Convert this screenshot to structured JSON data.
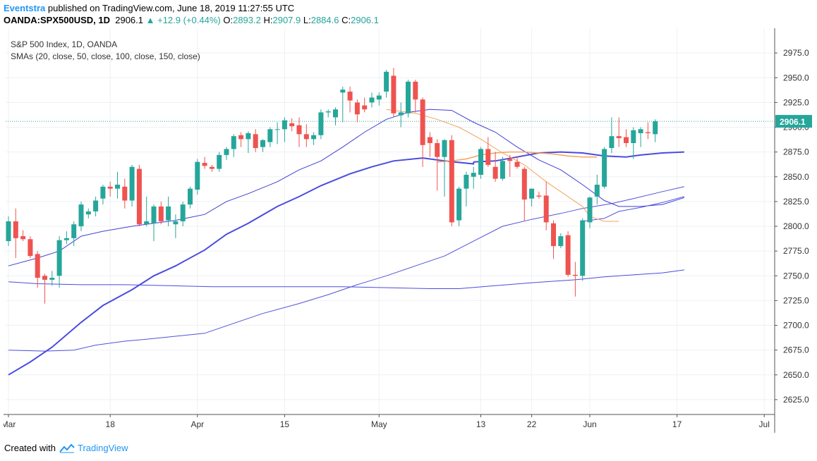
{
  "header": {
    "author": "Eventstra",
    "published_text": " published on TradingView.com, June 18, 2019 11:27:55 UTC",
    "symbol_line": "OANDA:SPX500USD, 1D",
    "price": "2906.1",
    "change": "▲ +12.9 (+0.44%)",
    "open_label": "O:",
    "open_value": "2893.2",
    "high_label": "H:",
    "high_value": "2907.9",
    "low_label": "L:",
    "low_value": "2884.6",
    "close_label": "C:",
    "close_value": "2906.1"
  },
  "legend": {
    "title": "S&P 500 Index, 1D, OANDA",
    "indicators": "SMAs (20, close, 50, close, 100, close, 150, close)"
  },
  "footer": {
    "created_with": "Created with",
    "brand": "TradingView"
  },
  "colors": {
    "up": "#26a69a",
    "down": "#ef5350",
    "sma20": "#3f3fd6",
    "sma50": "#f5a35c",
    "sma100": "#4b4be0",
    "sma150": "#5252d8",
    "last_price_bg": "#26a69a",
    "grid": "#eef0f3",
    "author": "#2196f3"
  },
  "chart_data": {
    "type": "candlestick",
    "ylim": [
      2610,
      3000
    ],
    "y_ticks": [
      "2625.0",
      "2650.0",
      "2675.0",
      "2700.0",
      "2725.0",
      "2750.0",
      "2775.0",
      "2800.0",
      "2825.0",
      "2850.0",
      "2875.0",
      "2900.0",
      "2925.0",
      "2950.0",
      "2975.0"
    ],
    "x_tick_labels": [
      "Mar",
      "18",
      "Apr",
      "15",
      "May",
      "13",
      "22",
      "Jun",
      "17",
      "Jul"
    ],
    "last_price_label": "2906.1",
    "candles": [
      {
        "o": 2785,
        "h": 2810,
        "l": 2780,
        "c": 2805
      },
      {
        "o": 2805,
        "h": 2818,
        "l": 2768,
        "c": 2788
      },
      {
        "o": 2790,
        "h": 2796,
        "l": 2785,
        "c": 2787
      },
      {
        "o": 2787,
        "h": 2790,
        "l": 2768,
        "c": 2770
      },
      {
        "o": 2772,
        "h": 2775,
        "l": 2738,
        "c": 2748
      },
      {
        "o": 2750,
        "h": 2752,
        "l": 2722,
        "c": 2746
      },
      {
        "o": 2746,
        "h": 2755,
        "l": 2740,
        "c": 2748
      },
      {
        "o": 2750,
        "h": 2790,
        "l": 2738,
        "c": 2786
      },
      {
        "o": 2786,
        "h": 2795,
        "l": 2782,
        "c": 2788
      },
      {
        "o": 2788,
        "h": 2805,
        "l": 2780,
        "c": 2802
      },
      {
        "o": 2800,
        "h": 2825,
        "l": 2795,
        "c": 2822
      },
      {
        "o": 2812,
        "h": 2818,
        "l": 2808,
        "c": 2815
      },
      {
        "o": 2815,
        "h": 2830,
        "l": 2810,
        "c": 2826
      },
      {
        "o": 2828,
        "h": 2842,
        "l": 2822,
        "c": 2840
      },
      {
        "o": 2840,
        "h": 2845,
        "l": 2830,
        "c": 2838
      },
      {
        "o": 2838,
        "h": 2855,
        "l": 2828,
        "c": 2842
      },
      {
        "o": 2840,
        "h": 2848,
        "l": 2818,
        "c": 2826
      },
      {
        "o": 2826,
        "h": 2862,
        "l": 2820,
        "c": 2860
      },
      {
        "o": 2858,
        "h": 2862,
        "l": 2800,
        "c": 2802
      },
      {
        "o": 2802,
        "h": 2830,
        "l": 2800,
        "c": 2805
      },
      {
        "o": 2803,
        "h": 2822,
        "l": 2785,
        "c": 2820
      },
      {
        "o": 2820,
        "h": 2825,
        "l": 2802,
        "c": 2805
      },
      {
        "o": 2806,
        "h": 2830,
        "l": 2800,
        "c": 2820
      },
      {
        "o": 2802,
        "h": 2812,
        "l": 2788,
        "c": 2805
      },
      {
        "o": 2805,
        "h": 2825,
        "l": 2800,
        "c": 2822
      },
      {
        "o": 2822,
        "h": 2840,
        "l": 2818,
        "c": 2838
      },
      {
        "o": 2837,
        "h": 2868,
        "l": 2832,
        "c": 2865
      },
      {
        "o": 2864,
        "h": 2870,
        "l": 2858,
        "c": 2861
      },
      {
        "o": 2860,
        "h": 2862,
        "l": 2855,
        "c": 2858
      },
      {
        "o": 2858,
        "h": 2875,
        "l": 2855,
        "c": 2872
      },
      {
        "o": 2872,
        "h": 2880,
        "l": 2867,
        "c": 2878
      },
      {
        "o": 2878,
        "h": 2893,
        "l": 2870,
        "c": 2891
      },
      {
        "o": 2892,
        "h": 2895,
        "l": 2880,
        "c": 2888
      },
      {
        "o": 2888,
        "h": 2896,
        "l": 2874,
        "c": 2894
      },
      {
        "o": 2893,
        "h": 2898,
        "l": 2875,
        "c": 2879
      },
      {
        "o": 2880,
        "h": 2888,
        "l": 2875,
        "c": 2887
      },
      {
        "o": 2885,
        "h": 2900,
        "l": 2880,
        "c": 2898
      },
      {
        "o": 2898,
        "h": 2905,
        "l": 2883,
        "c": 2898
      },
      {
        "o": 2898,
        "h": 2910,
        "l": 2885,
        "c": 2907
      },
      {
        "o": 2904,
        "h": 2909,
        "l": 2896,
        "c": 2901
      },
      {
        "o": 2902,
        "h": 2910,
        "l": 2880,
        "c": 2893
      },
      {
        "o": 2893,
        "h": 2903,
        "l": 2880,
        "c": 2888
      },
      {
        "o": 2888,
        "h": 2895,
        "l": 2882,
        "c": 2892
      },
      {
        "o": 2892,
        "h": 2918,
        "l": 2888,
        "c": 2915
      },
      {
        "o": 2915,
        "h": 2918,
        "l": 2910,
        "c": 2916
      },
      {
        "o": 2910,
        "h": 2920,
        "l": 2902,
        "c": 2918
      },
      {
        "o": 2935,
        "h": 2941,
        "l": 2905,
        "c": 2938
      },
      {
        "o": 2936,
        "h": 2941,
        "l": 2915,
        "c": 2927
      },
      {
        "o": 2925,
        "h": 2928,
        "l": 2905,
        "c": 2913
      },
      {
        "o": 2922,
        "h": 2930,
        "l": 2915,
        "c": 2918
      },
      {
        "o": 2925,
        "h": 2935,
        "l": 2920,
        "c": 2930
      },
      {
        "o": 2928,
        "h": 2935,
        "l": 2922,
        "c": 2932
      },
      {
        "o": 2936,
        "h": 2958,
        "l": 2930,
        "c": 2956
      },
      {
        "o": 2952,
        "h": 2960,
        "l": 2910,
        "c": 2914
      },
      {
        "o": 2912,
        "h": 2925,
        "l": 2900,
        "c": 2915
      },
      {
        "o": 2914,
        "h": 2948,
        "l": 2910,
        "c": 2946
      },
      {
        "o": 2946,
        "h": 2948,
        "l": 2915,
        "c": 2928
      },
      {
        "o": 2928,
        "h": 2930,
        "l": 2860,
        "c": 2882
      },
      {
        "o": 2890,
        "h": 2895,
        "l": 2870,
        "c": 2884
      },
      {
        "o": 2884,
        "h": 2888,
        "l": 2836,
        "c": 2870
      },
      {
        "o": 2870,
        "h": 2888,
        "l": 2830,
        "c": 2887
      },
      {
        "o": 2887,
        "h": 2892,
        "l": 2800,
        "c": 2804
      },
      {
        "o": 2806,
        "h": 2840,
        "l": 2800,
        "c": 2838
      },
      {
        "o": 2838,
        "h": 2855,
        "l": 2820,
        "c": 2852
      },
      {
        "o": 2850,
        "h": 2860,
        "l": 2838,
        "c": 2854
      },
      {
        "o": 2852,
        "h": 2880,
        "l": 2848,
        "c": 2878
      },
      {
        "o": 2878,
        "h": 2890,
        "l": 2860,
        "c": 2862
      },
      {
        "o": 2860,
        "h": 2875,
        "l": 2845,
        "c": 2848
      },
      {
        "o": 2848,
        "h": 2870,
        "l": 2846,
        "c": 2866
      },
      {
        "o": 2868,
        "h": 2872,
        "l": 2850,
        "c": 2866
      },
      {
        "o": 2865,
        "h": 2870,
        "l": 2858,
        "c": 2860
      },
      {
        "o": 2858,
        "h": 2860,
        "l": 2805,
        "c": 2827
      },
      {
        "o": 2828,
        "h": 2838,
        "l": 2820,
        "c": 2838
      },
      {
        "o": 2831,
        "h": 2835,
        "l": 2828,
        "c": 2830
      },
      {
        "o": 2831,
        "h": 2845,
        "l": 2796,
        "c": 2804
      },
      {
        "o": 2803,
        "h": 2806,
        "l": 2767,
        "c": 2780
      },
      {
        "o": 2780,
        "h": 2793,
        "l": 2778,
        "c": 2790
      },
      {
        "o": 2791,
        "h": 2795,
        "l": 2749,
        "c": 2751
      },
      {
        "o": 2751,
        "h": 2764,
        "l": 2729,
        "c": 2750
      },
      {
        "o": 2750,
        "h": 2808,
        "l": 2745,
        "c": 2806
      },
      {
        "o": 2804,
        "h": 2830,
        "l": 2798,
        "c": 2829
      },
      {
        "o": 2830,
        "h": 2852,
        "l": 2822,
        "c": 2842
      },
      {
        "o": 2840,
        "h": 2880,
        "l": 2838,
        "c": 2878
      },
      {
        "o": 2879,
        "h": 2910,
        "l": 2874,
        "c": 2891
      },
      {
        "o": 2891,
        "h": 2910,
        "l": 2880,
        "c": 2889
      },
      {
        "o": 2890,
        "h": 2898,
        "l": 2880,
        "c": 2884
      },
      {
        "o": 2884,
        "h": 2900,
        "l": 2868,
        "c": 2897
      },
      {
        "o": 2894,
        "h": 2900,
        "l": 2880,
        "c": 2898
      },
      {
        "o": 2895,
        "h": 2905,
        "l": 2888,
        "c": 2894
      },
      {
        "o": 2893,
        "h": 2908,
        "l": 2885,
        "c": 2906
      }
    ],
    "sma20": [
      [
        0,
        2760
      ],
      [
        4,
        2768
      ],
      [
        7,
        2775
      ],
      [
        10,
        2790
      ],
      [
        13,
        2795
      ],
      [
        17,
        2800
      ],
      [
        20,
        2803
      ],
      [
        23,
        2806
      ],
      [
        27,
        2812
      ],
      [
        30,
        2825
      ],
      [
        33,
        2833
      ],
      [
        37,
        2845
      ],
      [
        40,
        2857
      ],
      [
        43,
        2866
      ],
      [
        46,
        2880
      ],
      [
        49,
        2895
      ],
      [
        52,
        2908
      ],
      [
        55,
        2915
      ],
      [
        58,
        2918
      ],
      [
        61,
        2917
      ],
      [
        64,
        2905
      ],
      [
        67,
        2895
      ],
      [
        70,
        2880
      ],
      [
        73,
        2867
      ],
      [
        76,
        2857
      ],
      [
        79,
        2842
      ],
      [
        82,
        2826
      ],
      [
        84,
        2820
      ],
      [
        87,
        2820
      ],
      [
        90,
        2822
      ],
      [
        93,
        2829
      ]
    ],
    "sma50": [
      [
        64,
        2865
      ],
      [
        67,
        2866
      ],
      [
        70,
        2870
      ],
      [
        73,
        2874
      ],
      [
        76,
        2875
      ],
      [
        79,
        2874
      ],
      [
        82,
        2871
      ],
      [
        85,
        2870
      ],
      [
        87,
        2872
      ],
      [
        90,
        2874
      ],
      [
        93,
        2875
      ]
    ],
    "sma100": [
      [
        0,
        2650
      ],
      [
        3,
        2663
      ],
      [
        6,
        2678
      ],
      [
        10,
        2703
      ],
      [
        13,
        2720
      ],
      [
        17,
        2736
      ],
      [
        20,
        2750
      ],
      [
        23,
        2760
      ],
      [
        27,
        2776
      ],
      [
        30,
        2792
      ],
      [
        33,
        2803
      ],
      [
        37,
        2820
      ],
      [
        40,
        2830
      ],
      [
        43,
        2841
      ],
      [
        47,
        2853
      ],
      [
        50,
        2860
      ],
      [
        53,
        2866
      ],
      [
        57,
        2869
      ],
      [
        60,
        2866
      ],
      [
        64,
        2863
      ],
      [
        64,
        2865
      ]
    ],
    "sma100b": [
      [
        0,
        2744
      ],
      [
        4,
        2742
      ],
      [
        10,
        2741
      ],
      [
        16,
        2741
      ],
      [
        22,
        2740
      ],
      [
        28,
        2739
      ],
      [
        34,
        2739
      ],
      [
        40,
        2739
      ],
      [
        46,
        2739
      ],
      [
        52,
        2738
      ],
      [
        58,
        2737
      ],
      [
        62,
        2737
      ],
      [
        67,
        2740
      ],
      [
        72,
        2743
      ],
      [
        78,
        2746
      ],
      [
        82,
        2749
      ],
      [
        86,
        2751
      ],
      [
        90,
        2753
      ],
      [
        93,
        2756
      ]
    ],
    "sma150": [
      [
        0,
        2675
      ],
      [
        5,
        2674
      ],
      [
        9,
        2675
      ],
      [
        12,
        2680
      ],
      [
        16,
        2684
      ],
      [
        19,
        2686
      ],
      [
        23,
        2689
      ],
      [
        27,
        2692
      ],
      [
        31,
        2702
      ],
      [
        35,
        2712
      ],
      [
        40,
        2722
      ],
      [
        44,
        2731
      ],
      [
        48,
        2741
      ],
      [
        52,
        2750
      ],
      [
        56,
        2760
      ],
      [
        60,
        2770
      ],
      [
        64,
        2785
      ],
      [
        68,
        2800
      ],
      [
        72,
        2807
      ],
      [
        76,
        2813
      ],
      [
        79,
        2818
      ],
      [
        83,
        2823
      ],
      [
        86,
        2828
      ],
      [
        90,
        2835
      ],
      [
        93,
        2840
      ]
    ],
    "sma_long": [
      [
        79,
        2805
      ],
      [
        82,
        2808
      ],
      [
        84,
        2815
      ],
      [
        87,
        2819
      ],
      [
        90,
        2824
      ],
      [
        93,
        2830
      ]
    ]
  }
}
